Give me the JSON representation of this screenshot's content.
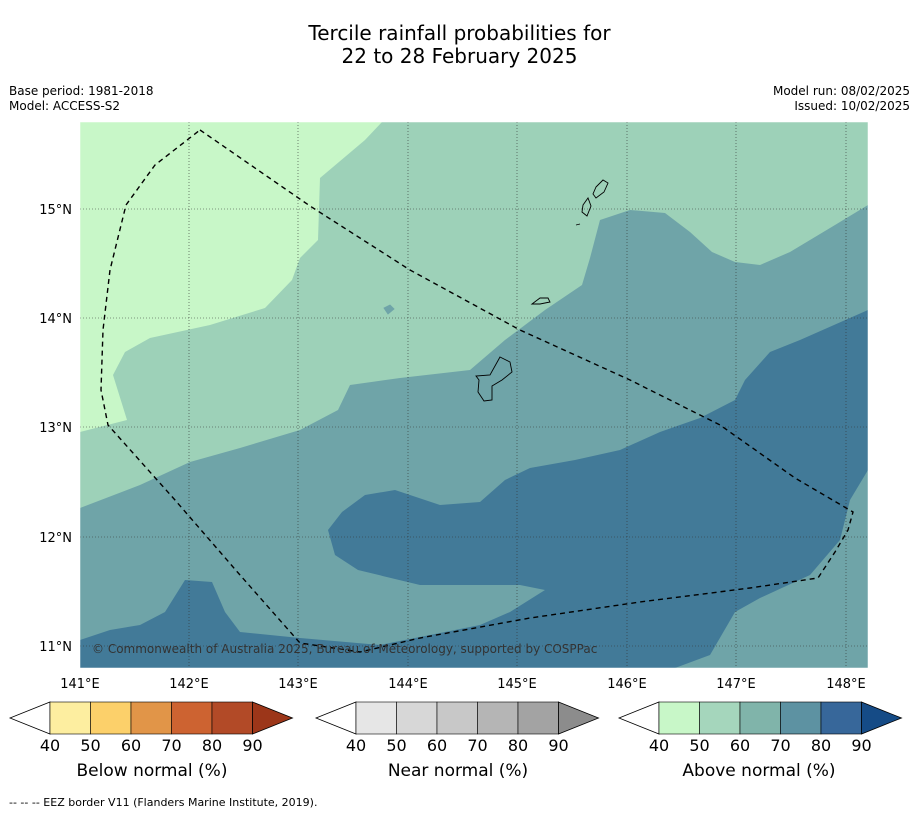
{
  "title": {
    "line1": "Tercile rainfall probabilities for",
    "line2": "22 to 28 February 2025"
  },
  "meta": {
    "base_period": "Base period: 1981-2018",
    "model": "Model: ACCESS-S2",
    "model_run": "Model run: 08/02/2025",
    "issued": "Issued: 10/02/2025"
  },
  "map": {
    "copyright": "© Commonwealth of Australia 2025, Bureau of Meteorology, supported by COSPPac",
    "lon_labels": [
      "141°E",
      "142°E",
      "143°E",
      "144°E",
      "145°E",
      "146°E",
      "147°E",
      "148°E"
    ],
    "lat_labels": [
      "15°N",
      "14°N",
      "13°N",
      "12°N",
      "11°N"
    ],
    "region_colors": {
      "above_40_50": "#c8f7c8",
      "above_50_60": "#9dd1b8",
      "above_60_70": "#6fa4a8",
      "above_70_80": "#427a98"
    }
  },
  "colorbars": [
    {
      "title": "Below normal (%)",
      "ticks": [
        "40",
        "50",
        "60",
        "70",
        "80",
        "90"
      ],
      "colors": [
        "#ffffff",
        "#fdeea0",
        "#fcd06a",
        "#e19548",
        "#cd6331",
        "#b24a27",
        "#9c3619"
      ]
    },
    {
      "title": "Near normal (%)",
      "ticks": [
        "40",
        "50",
        "60",
        "70",
        "80",
        "90"
      ],
      "colors": [
        "#ffffff",
        "#e6e6e6",
        "#d7d7d7",
        "#c8c8c8",
        "#b5b5b5",
        "#a3a3a3",
        "#8c8c8c"
      ]
    },
    {
      "title": "Above normal (%)",
      "ticks": [
        "40",
        "50",
        "60",
        "70",
        "80",
        "90"
      ],
      "colors": [
        "#ffffff",
        "#c8f7c8",
        "#a5d6bc",
        "#80b4aa",
        "#5d92a2",
        "#37679a",
        "#154b86"
      ]
    }
  ],
  "footer": "--  --  -- EEZ border V11 (Flanders Marine Institute, 2019)."
}
